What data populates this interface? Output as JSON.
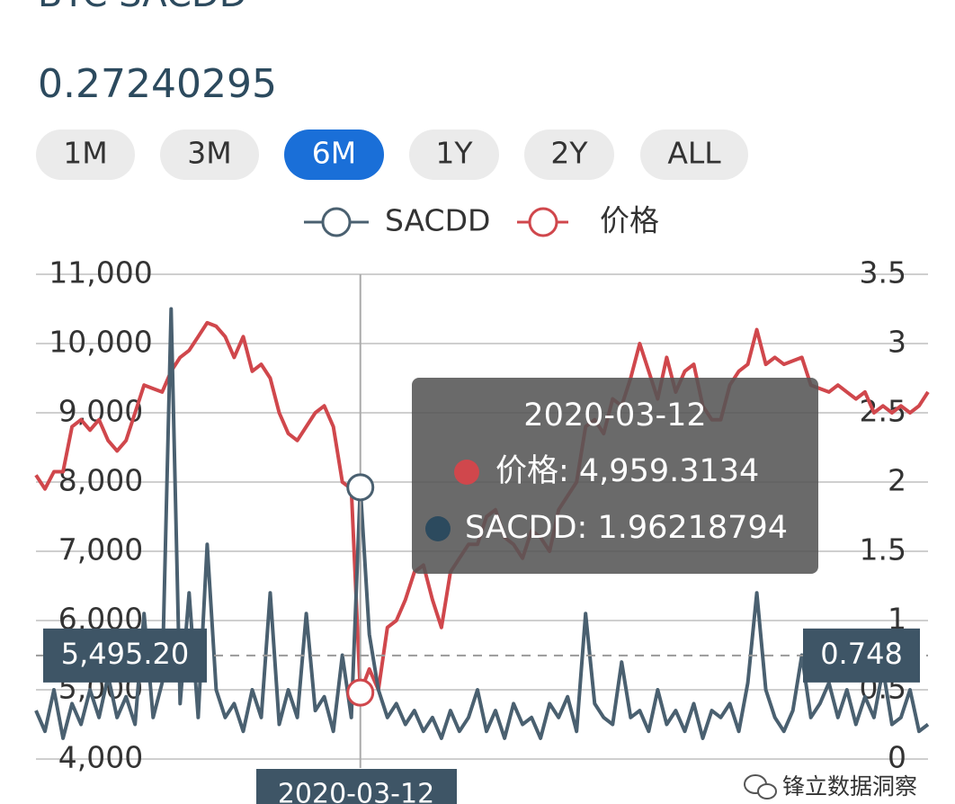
{
  "header": {
    "title": "BTC SACDD",
    "value": "0.27240295"
  },
  "range_buttons": {
    "labels": [
      "1M",
      "3M",
      "6M",
      "1Y",
      "2Y",
      "ALL"
    ],
    "selected": 2
  },
  "chart_data": {
    "type": "line",
    "categories": [
      null,
      null,
      null,
      null,
      null,
      null,
      null,
      null,
      null,
      null,
      null,
      null,
      null,
      null,
      null,
      null,
      null,
      null,
      null,
      null,
      null,
      null,
      null,
      null,
      null,
      null,
      null,
      null,
      null,
      null,
      null,
      null,
      null,
      null,
      null,
      null,
      "2020-03-12",
      null,
      null,
      null,
      null,
      null,
      null,
      null,
      null,
      null,
      null,
      null,
      null,
      null,
      null,
      null,
      null,
      null,
      null,
      null,
      null,
      null,
      null,
      null,
      null,
      null,
      null,
      null,
      null,
      null,
      null,
      null,
      null,
      null,
      null,
      null,
      null,
      null,
      null,
      null,
      null,
      null,
      null,
      null,
      null,
      null,
      null,
      null,
      null,
      null,
      null,
      null,
      null,
      null,
      null,
      null,
      null,
      null,
      null,
      null,
      null,
      null,
      null,
      null
    ],
    "series": [
      {
        "name": "SACDD",
        "color": "#4a6070",
        "axis": "y2",
        "values": [
          0.35,
          0.2,
          0.5,
          0.15,
          0.4,
          0.25,
          0.5,
          0.3,
          0.6,
          0.3,
          0.45,
          0.25,
          1.05,
          0.3,
          0.55,
          3.25,
          0.4,
          1.2,
          0.3,
          1.55,
          0.5,
          0.3,
          0.4,
          0.2,
          0.5,
          0.3,
          1.2,
          0.25,
          0.5,
          0.3,
          1.05,
          0.35,
          0.45,
          0.2,
          0.75,
          0.3,
          1.96218794,
          0.9,
          0.5,
          0.3,
          0.4,
          0.25,
          0.35,
          0.2,
          0.3,
          0.15,
          0.35,
          0.2,
          0.3,
          0.5,
          0.2,
          0.35,
          0.15,
          0.4,
          0.25,
          0.3,
          0.15,
          0.4,
          0.3,
          0.45,
          0.2,
          1.05,
          0.4,
          0.3,
          0.25,
          0.7,
          0.3,
          0.35,
          0.2,
          0.5,
          0.25,
          0.35,
          0.2,
          0.4,
          0.15,
          0.35,
          0.3,
          0.4,
          0.2,
          0.55,
          1.2,
          0.5,
          0.3,
          0.2,
          0.35,
          0.75,
          0.3,
          0.4,
          0.55,
          0.3,
          0.5,
          0.25,
          0.45,
          0.3,
          0.65,
          0.25,
          0.3,
          0.5,
          0.2,
          0.25
        ]
      },
      {
        "name": "价格",
        "color": "#d0474c",
        "axis": "y",
        "values": [
          8100,
          7900,
          8150,
          8150,
          8800,
          8900,
          8750,
          8900,
          8600,
          8450,
          8600,
          9000,
          9400,
          9350,
          9300,
          9600,
          9800,
          9900,
          10100,
          10300,
          10250,
          10100,
          9800,
          10100,
          9600,
          9700,
          9500,
          9000,
          8700,
          8600,
          8800,
          9000,
          9100,
          8800,
          8000,
          7900,
          4959.3134,
          5300,
          5000,
          5900,
          6000,
          6300,
          6700,
          6800,
          6300,
          5900,
          6700,
          6900,
          7100,
          7100,
          7500,
          7600,
          7200,
          7100,
          6900,
          7300,
          7200,
          7000,
          7600,
          7800,
          8000,
          8800,
          8900,
          8700,
          9200,
          9100,
          9500,
          10000,
          9600,
          9200,
          9800,
          9300,
          9600,
          9700,
          9100,
          8900,
          8900,
          9400,
          9600,
          9700,
          10200,
          9700,
          9800,
          9700,
          9750,
          9800,
          9400,
          9350,
          9300,
          9400,
          9300,
          9200,
          9300,
          9000,
          9100,
          9000,
          9100,
          9000,
          9100,
          9300
        ]
      }
    ],
    "ylim": [
      4000,
      11000
    ],
    "yticks": [
      {
        "value": 4000,
        "label": "4,000"
      },
      {
        "value": 5000,
        "label": "5,000"
      },
      {
        "value": 6000,
        "label": "6,000"
      },
      {
        "value": 7000,
        "label": "7,000"
      },
      {
        "value": 8000,
        "label": "8,000"
      },
      {
        "value": 9000,
        "label": "9,000"
      },
      {
        "value": 10000,
        "label": "10,000"
      },
      {
        "value": 11000,
        "label": "11,000"
      }
    ],
    "y2lim": [
      0,
      3.5
    ],
    "y2ticks": [
      0,
      0.5,
      1,
      1.5,
      2,
      2.5,
      3,
      3.5
    ],
    "grid": true,
    "crosshair": {
      "index": 36,
      "y": {
        "value": 5495.2,
        "label": "5,495.20"
      },
      "y2": 0.748
    },
    "tooltip": {
      "title": "2020-03-12",
      "lines": [
        "价格: 4,959.3134",
        "SACDD: 1.96218794"
      ]
    }
  },
  "watermark": "锋立数据洞察"
}
